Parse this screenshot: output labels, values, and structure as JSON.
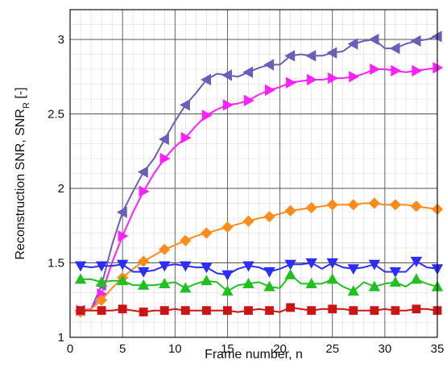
{
  "chart_data": {
    "type": "line",
    "xlabel": "Frame number, n",
    "ylabel": "Reconstruction SNR, SNR",
    "ylabel_sub": "R",
    "ylabel_unit": " [-]",
    "xlim": [
      0,
      35
    ],
    "ylim": [
      1,
      3.2
    ],
    "xticks": [
      0,
      5,
      10,
      15,
      20,
      25,
      30,
      35
    ],
    "yticks": [
      1,
      1.5,
      2,
      2.5,
      3
    ],
    "xtick_labels": [
      "0",
      "5",
      "10",
      "15",
      "20",
      "25",
      "30",
      "35"
    ],
    "ytick_labels": [
      "1",
      "1.5",
      "2",
      "2.5",
      "3"
    ],
    "grid": true,
    "minor_grid": true,
    "x": [
      1,
      2,
      3,
      4,
      5,
      6,
      7,
      8,
      9,
      10,
      11,
      12,
      13,
      14,
      15,
      16,
      17,
      18,
      19,
      20,
      21,
      22,
      23,
      24,
      25,
      26,
      27,
      28,
      29,
      30,
      31,
      32,
      33,
      34,
      35
    ],
    "series": [
      {
        "color": "#6a5fb8",
        "marker": "triangle-left",
        "values": [
          1.18,
          1.19,
          1.35,
          1.62,
          1.84,
          1.98,
          2.11,
          2.2,
          2.33,
          2.45,
          2.56,
          2.64,
          2.73,
          2.77,
          2.76,
          2.75,
          2.78,
          2.81,
          2.83,
          2.83,
          2.89,
          2.9,
          2.89,
          2.89,
          2.91,
          2.92,
          2.97,
          2.99,
          3.0,
          2.94,
          2.94,
          2.97,
          2.99,
          3.0,
          3.02
        ]
      },
      {
        "color": "#ff20ff",
        "marker": "triangle-right",
        "values": [
          1.18,
          1.19,
          1.29,
          1.5,
          1.68,
          1.84,
          1.98,
          2.1,
          2.2,
          2.28,
          2.34,
          2.42,
          2.49,
          2.53,
          2.56,
          2.57,
          2.59,
          2.63,
          2.66,
          2.68,
          2.71,
          2.72,
          2.73,
          2.73,
          2.74,
          2.74,
          2.75,
          2.77,
          2.8,
          2.8,
          2.79,
          2.78,
          2.79,
          2.8,
          2.81
        ]
      },
      {
        "color": "#ff8c1a",
        "marker": "diamond",
        "values": [
          1.17,
          1.19,
          1.25,
          1.33,
          1.4,
          1.46,
          1.51,
          1.55,
          1.59,
          1.62,
          1.65,
          1.68,
          1.7,
          1.72,
          1.74,
          1.76,
          1.78,
          1.8,
          1.81,
          1.83,
          1.85,
          1.86,
          1.87,
          1.88,
          1.89,
          1.89,
          1.89,
          1.9,
          1.9,
          1.89,
          1.89,
          1.89,
          1.88,
          1.87,
          1.86
        ]
      },
      {
        "color": "#2d2dff",
        "marker": "triangle-down",
        "values": [
          1.48,
          1.47,
          1.48,
          1.48,
          1.49,
          1.44,
          1.44,
          1.45,
          1.48,
          1.49,
          1.48,
          1.47,
          1.47,
          1.43,
          1.42,
          1.46,
          1.48,
          1.47,
          1.44,
          1.46,
          1.49,
          1.49,
          1.5,
          1.46,
          1.5,
          1.47,
          1.46,
          1.47,
          1.49,
          1.44,
          1.44,
          1.44,
          1.51,
          1.47,
          1.46
        ]
      },
      {
        "color": "#20c020",
        "marker": "triangle-up",
        "values": [
          1.39,
          1.39,
          1.37,
          1.38,
          1.38,
          1.35,
          1.35,
          1.35,
          1.36,
          1.37,
          1.33,
          1.36,
          1.38,
          1.37,
          1.31,
          1.35,
          1.36,
          1.37,
          1.34,
          1.33,
          1.42,
          1.36,
          1.36,
          1.36,
          1.39,
          1.34,
          1.31,
          1.37,
          1.34,
          1.36,
          1.37,
          1.34,
          1.39,
          1.36,
          1.34
        ]
      },
      {
        "color": "#cc1414",
        "marker": "square",
        "values": [
          1.18,
          1.18,
          1.18,
          1.18,
          1.19,
          1.18,
          1.17,
          1.18,
          1.18,
          1.19,
          1.18,
          1.18,
          1.18,
          1.18,
          1.18,
          1.17,
          1.18,
          1.19,
          1.18,
          1.17,
          1.2,
          1.19,
          1.18,
          1.19,
          1.19,
          1.19,
          1.18,
          1.18,
          1.18,
          1.19,
          1.18,
          1.18,
          1.19,
          1.19,
          1.18
        ]
      }
    ]
  }
}
